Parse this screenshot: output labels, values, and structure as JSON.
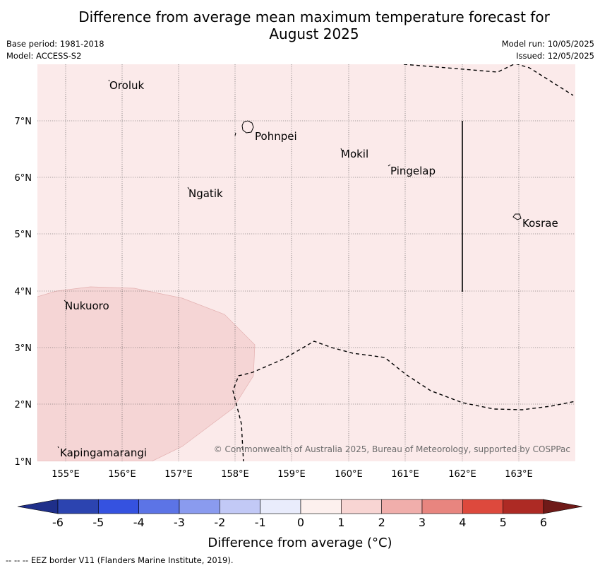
{
  "title_line1": "Difference from average mean maximum temperature forecast for",
  "title_line2": "August 2025",
  "base_period": "Base period: 1981-2018",
  "model": "Model: ACCESS-S2",
  "model_run": "Model run: 10/05/2025",
  "issued": "Issued: 12/05/2025",
  "copyright": "© Commonwealth of Australia 2025, Bureau of Meteorology, supported by COSPPac",
  "colorbar_label": "Difference from average (°C)",
  "footer_note": "--  --  -- EEZ border V11 (Flanders Marine Institute, 2019).",
  "map": {
    "lon_ticks": [
      "155°E",
      "156°E",
      "157°E",
      "158°E",
      "159°E",
      "160°E",
      "161°E",
      "162°E",
      "163°E"
    ],
    "lat_ticks": [
      "7°N",
      "6°N",
      "5°N",
      "4°N",
      "3°N",
      "2°N",
      "1°N"
    ],
    "places": [
      {
        "name": "Oroluk"
      },
      {
        "name": "Pohnpei"
      },
      {
        "name": "Mokil"
      },
      {
        "name": "Pingelap"
      },
      {
        "name": "Ngatik"
      },
      {
        "name": "Kosrae"
      },
      {
        "name": "Nukuoro"
      },
      {
        "name": "Kapingamarangi"
      }
    ],
    "background_color": "#fbeaea",
    "anomaly_region_color": "#f5d5d5"
  },
  "colorbar": {
    "ticks": [
      "-6",
      "-5",
      "-4",
      "-3",
      "-2",
      "-1",
      "0",
      "1",
      "2",
      "3",
      "4",
      "5",
      "6"
    ],
    "colors": [
      "#1f2f8a",
      "#2c44b0",
      "#3552e0",
      "#5c74e6",
      "#8a9bef",
      "#c2c9f6",
      "#e9ecfc",
      "#fdf0ee",
      "#f8d5d3",
      "#f0aeab",
      "#e8857f",
      "#dd493d",
      "#ad2a24",
      "#6f1a18"
    ]
  }
}
